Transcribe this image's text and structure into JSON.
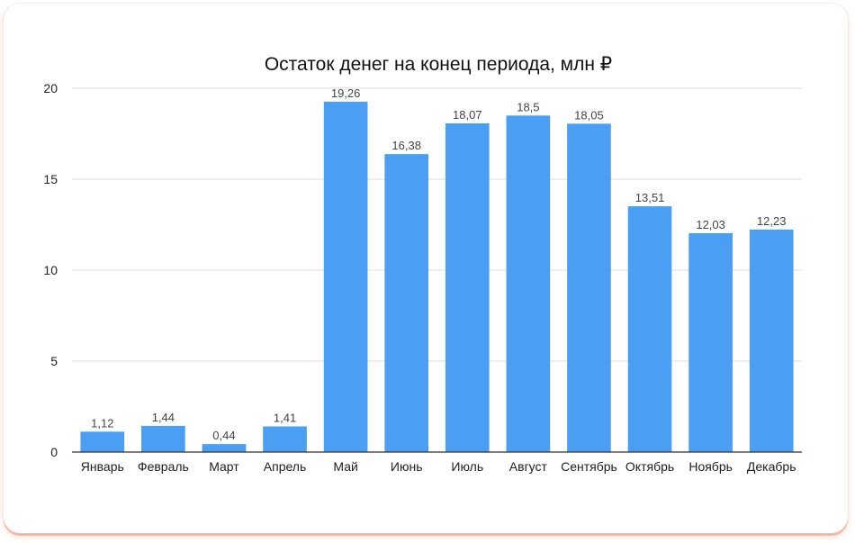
{
  "chart_data": {
    "type": "bar",
    "title": "Остаток денег на конец периода, млн ₽",
    "xlabel": "",
    "ylabel": "",
    "ylim": [
      0,
      20
    ],
    "yticks": [
      0,
      5,
      10,
      15,
      20
    ],
    "grid": true,
    "legend": "none",
    "bar_color": "#4a9ff5",
    "categories": [
      "Январь",
      "Февраль",
      "Март",
      "Апрель",
      "Май",
      "Июнь",
      "Июль",
      "Август",
      "Сентябрь",
      "Октябрь",
      "Ноябрь",
      "Декабрь"
    ],
    "values": [
      1.12,
      1.44,
      0.44,
      1.41,
      19.26,
      16.38,
      18.07,
      18.5,
      18.05,
      13.51,
      12.03,
      12.23
    ],
    "data_labels": [
      "1,12",
      "1,44",
      "0,44",
      "1,41",
      "19,26",
      "16,38",
      "18,07",
      "18,5",
      "18,05",
      "13,51",
      "12,03",
      "12,23"
    ]
  }
}
